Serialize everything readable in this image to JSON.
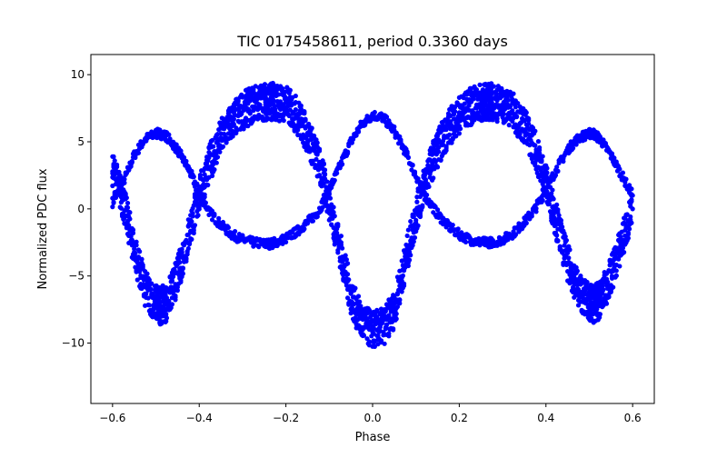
{
  "chart_data": {
    "type": "scatter",
    "title": "TIC 0175458611, period 0.3360 days",
    "xlabel": "Phase",
    "ylabel": "Normalized PDC flux",
    "xlim": [
      -0.65,
      0.65
    ],
    "ylim": [
      -14.5,
      11.5
    ],
    "xticks": [
      -0.6,
      -0.4,
      -0.2,
      0.0,
      0.2,
      0.4,
      0.6
    ],
    "xtick_labels": [
      "−0.6",
      "−0.4",
      "−0.2",
      "0.0",
      "0.2",
      "0.4",
      "0.6"
    ],
    "yticks": [
      10,
      5,
      0,
      -5,
      -10
    ],
    "ytick_labels": [
      "10",
      "5",
      "0",
      "−5",
      "−10"
    ],
    "grid": false,
    "marker_color": "#0000ff",
    "series": [
      {
        "x": [
          -0.6,
          -0.575,
          -0.55,
          -0.525,
          -0.5,
          -0.49,
          -0.475,
          -0.45,
          -0.425,
          -0.4,
          -0.375,
          -0.35,
          -0.325,
          -0.3,
          -0.275,
          -0.25,
          -0.235,
          -0.225,
          -0.2,
          -0.175,
          -0.15,
          -0.125,
          -0.1,
          -0.075,
          -0.05,
          -0.025,
          0.0,
          0.025,
          0.05,
          0.075,
          0.1,
          0.125,
          0.15,
          0.175,
          0.2,
          0.225,
          0.25,
          0.265,
          0.275,
          0.3,
          0.325,
          0.35,
          0.375,
          0.4,
          0.425,
          0.45,
          0.475,
          0.5,
          0.51,
          0.525,
          0.55,
          0.575,
          0.6
        ],
        "y": [
          0.5,
          2.0,
          4.0,
          5.2,
          5.6,
          5.6,
          5.4,
          4.4,
          3.0,
          1.2,
          -0.3,
          -1.2,
          -1.9,
          -2.3,
          -2.5,
          -2.6,
          -2.6,
          -2.5,
          -2.2,
          -1.7,
          -1.0,
          -0.2,
          1.4,
          3.2,
          5.0,
          6.3,
          7.0,
          6.8,
          5.8,
          4.3,
          2.5,
          0.8,
          -0.4,
          -1.3,
          -1.9,
          -2.3,
          -2.5,
          -2.5,
          -2.5,
          -2.3,
          -1.8,
          -1.0,
          0.0,
          1.4,
          3.0,
          4.4,
          5.3,
          5.6,
          5.6,
          5.2,
          4.0,
          2.5,
          1.0
        ]
      },
      {
        "x": [
          -0.6,
          -0.575,
          -0.55,
          -0.525,
          -0.5,
          -0.49,
          -0.475,
          -0.45,
          -0.425,
          -0.4,
          -0.375,
          -0.35,
          -0.325,
          -0.3,
          -0.275,
          -0.25,
          -0.235,
          -0.225,
          -0.2,
          -0.175,
          -0.15,
          -0.125,
          -0.1,
          -0.075,
          -0.05,
          -0.025,
          0.0,
          0.025,
          0.05,
          0.075,
          0.1,
          0.125,
          0.15,
          0.175,
          0.2,
          0.225,
          0.25,
          0.265,
          0.275,
          0.3,
          0.325,
          0.35,
          0.375,
          0.4,
          0.425,
          0.45,
          0.475,
          0.5,
          0.51,
          0.525,
          0.55,
          0.575,
          0.6
        ],
        "y": [
          3.0,
          0.5,
          -3.0,
          -6.0,
          -7.0,
          -7.2,
          -7.0,
          -5.0,
          -2.0,
          1.0,
          3.5,
          5.3,
          6.5,
          7.3,
          7.8,
          8.0,
          8.0,
          8.0,
          7.8,
          7.0,
          5.5,
          3.5,
          0.5,
          -3.0,
          -6.5,
          -8.5,
          -9.0,
          -8.8,
          -7.5,
          -4.0,
          -0.5,
          2.5,
          4.5,
          6.0,
          7.0,
          7.6,
          7.9,
          8.0,
          8.0,
          7.8,
          7.2,
          6.2,
          4.5,
          2.0,
          -1.0,
          -4.0,
          -6.0,
          -7.0,
          -7.1,
          -6.8,
          -5.0,
          -2.5,
          0.0
        ]
      }
    ]
  }
}
